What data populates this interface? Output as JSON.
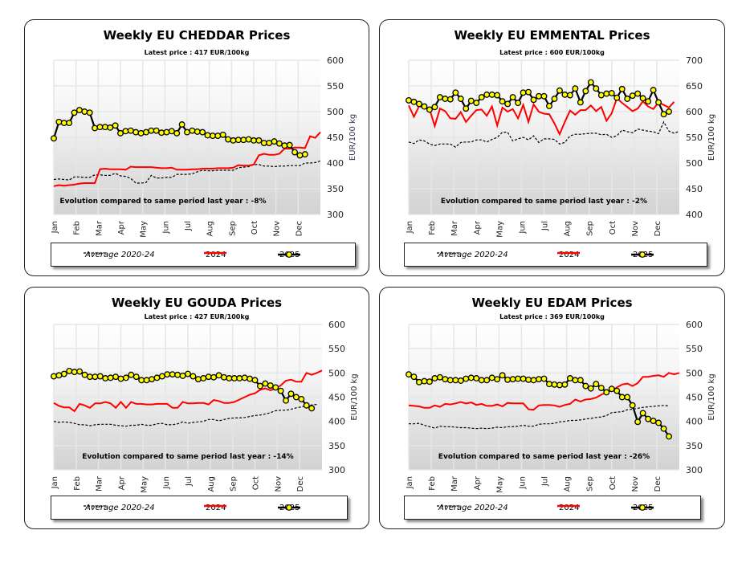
{
  "legend_labels": {
    "avg": "Average 2020-24",
    "y2024": "2024",
    "y2025": "2025"
  },
  "colors": {
    "avg": "#000000",
    "y2024": "#ff0000",
    "y2025": "#000000",
    "marker": "#ffff00"
  },
  "chart_data": [
    {
      "type": "line",
      "title": "Weekly EU CHEDDAR Prices",
      "subtitle": "Latest price : 417 EUR/100kg",
      "ylabel": "EUR/100 kg",
      "note": "Evolution compared to same period last year : -8%",
      "ylim": [
        300,
        600
      ],
      "y_ticks": [
        300,
        350,
        400,
        450,
        500,
        550,
        600
      ],
      "x_unit": "week",
      "months": [
        "Jan",
        "Feb",
        "Mar",
        "Apr",
        "May",
        "Jun",
        "Jul",
        "Aug",
        "Sep",
        "Oct",
        "Nov",
        "Dec"
      ],
      "grid": true,
      "legend": "bottom",
      "series": [
        {
          "name": "Average 2020-24",
          "style": "dashed",
          "values": [
            368,
            369,
            368,
            367,
            373,
            373,
            372,
            372,
            377,
            377,
            376,
            376,
            380,
            375,
            374,
            370,
            361,
            361,
            362,
            376,
            371,
            371,
            372,
            372,
            378,
            378,
            378,
            379,
            383,
            386,
            385,
            385,
            386,
            386,
            386,
            386,
            391,
            392,
            393,
            397,
            397,
            394,
            394,
            393,
            394,
            394,
            395,
            395,
            395,
            400,
            400,
            401,
            404
          ]
        },
        {
          "name": "2024",
          "style": "solid",
          "values": [
            355,
            357,
            356,
            357,
            358,
            360,
            361,
            361,
            361,
            388,
            389,
            388,
            388,
            388,
            387,
            393,
            392,
            392,
            392,
            392,
            391,
            390,
            390,
            391,
            387,
            387,
            387,
            388,
            388,
            389,
            389,
            389,
            390,
            390,
            390,
            391,
            396,
            395,
            395,
            397,
            415,
            418,
            416,
            416,
            418,
            428,
            428,
            430,
            430,
            429,
            452,
            449,
            460
          ]
        },
        {
          "name": "2025",
          "style": "markers",
          "values": [
            448,
            480,
            478,
            478,
            498,
            503,
            500,
            498,
            468,
            470,
            470,
            469,
            473,
            458,
            462,
            463,
            460,
            458,
            460,
            463,
            463,
            459,
            460,
            462,
            458,
            475,
            460,
            463,
            461,
            460,
            454,
            453,
            453,
            455,
            446,
            444,
            445,
            445,
            446,
            444,
            444,
            439,
            439,
            442,
            438,
            434,
            435,
            421,
            415,
            417
          ]
        }
      ]
    },
    {
      "type": "line",
      "title": "Weekly EU EMMENTAL Prices",
      "subtitle": "Latest price : 600 EUR/100kg",
      "ylabel": "EUR/100 kg",
      "note": "Evolution compared to same period last year : -2%",
      "ylim": [
        400,
        700
      ],
      "y_ticks": [
        400,
        450,
        500,
        550,
        600,
        650,
        700
      ],
      "x_unit": "week",
      "months": [
        "Jan",
        "Feb",
        "Mar",
        "Apr",
        "May",
        "Jun",
        "Jul",
        "Aug",
        "Sep",
        "Oct",
        "Nov",
        "Dec"
      ],
      "grid": true,
      "legend": "bottom",
      "series": [
        {
          "name": "Average 2020-24",
          "style": "dashed",
          "values": [
            541,
            538,
            545,
            543,
            537,
            534,
            537,
            537,
            537,
            531,
            540,
            541,
            541,
            545,
            545,
            541,
            546,
            550,
            560,
            560,
            543,
            547,
            550,
            545,
            553,
            540,
            547,
            547,
            546,
            537,
            540,
            553,
            556,
            556,
            557,
            558,
            558,
            555,
            556,
            550,
            553,
            564,
            561,
            559,
            566,
            564,
            562,
            561,
            557,
            580,
            562,
            558,
            562
          ]
        },
        {
          "name": "2024",
          "style": "solid",
          "values": [
            612,
            590,
            611,
            607,
            605,
            572,
            606,
            601,
            587,
            586,
            599,
            580,
            592,
            603,
            604,
            592,
            610,
            573,
            608,
            600,
            605,
            587,
            613,
            580,
            614,
            600,
            596,
            595,
            577,
            556,
            580,
            602,
            594,
            603,
            603,
            612,
            601,
            609,
            582,
            597,
            626,
            617,
            609,
            601,
            606,
            620,
            610,
            605,
            618,
            613,
            608,
            619
          ]
        },
        {
          "name": "2025",
          "style": "markers",
          "values": [
            622,
            619,
            615,
            610,
            604,
            609,
            628,
            625,
            624,
            637,
            625,
            606,
            621,
            617,
            628,
            633,
            633,
            632,
            620,
            615,
            628,
            617,
            637,
            638,
            623,
            630,
            630,
            611,
            625,
            641,
            633,
            632,
            645,
            618,
            640,
            657,
            645,
            632,
            635,
            636,
            627,
            644,
            625,
            631,
            635,
            626,
            620,
            642,
            618,
            595,
            600
          ]
        }
      ]
    },
    {
      "type": "line",
      "title": "Weekly EU GOUDA Prices",
      "subtitle": "Latest price : 427 EUR/100kg",
      "ylabel": "EUR/100 kg",
      "note": "Evolution compared to same period last year : -14%",
      "ylim": [
        300,
        600
      ],
      "y_ticks": [
        300,
        350,
        400,
        450,
        500,
        550,
        600
      ],
      "x_unit": "week",
      "months": [
        "Jan",
        "Feb",
        "Mar",
        "Apr",
        "May",
        "Jun",
        "Jul",
        "Aug",
        "Sep",
        "Oct",
        "Nov",
        "Dec"
      ],
      "grid": true,
      "legend": "bottom",
      "series": [
        {
          "name": "Average 2020-24",
          "style": "dashed",
          "values": [
            400,
            398,
            399,
            398,
            396,
            393,
            393,
            391,
            393,
            394,
            394,
            394,
            392,
            391,
            390,
            392,
            392,
            394,
            392,
            392,
            395,
            396,
            393,
            393,
            395,
            399,
            396,
            398,
            399,
            400,
            404,
            404,
            401,
            404,
            406,
            407,
            407,
            408,
            410,
            412,
            413,
            415,
            418,
            422,
            423,
            423,
            425,
            428,
            430,
            432,
            434,
            435
          ]
        },
        {
          "name": "2024",
          "style": "solid",
          "values": [
            438,
            432,
            429,
            429,
            421,
            436,
            433,
            428,
            437,
            437,
            440,
            437,
            428,
            440,
            428,
            440,
            436,
            436,
            435,
            435,
            436,
            436,
            436,
            428,
            428,
            440,
            437,
            437,
            438,
            438,
            435,
            444,
            442,
            438,
            438,
            440,
            445,
            450,
            455,
            458,
            465,
            468,
            464,
            468,
            474,
            484,
            486,
            482,
            482,
            500,
            496,
            500,
            505
          ]
        },
        {
          "name": "2025",
          "style": "markers",
          "values": [
            493,
            495,
            498,
            504,
            502,
            503,
            496,
            492,
            492,
            493,
            489,
            490,
            492,
            488,
            490,
            496,
            492,
            485,
            485,
            487,
            490,
            493,
            497,
            497,
            496,
            494,
            498,
            493,
            487,
            489,
            492,
            491,
            495,
            491,
            489,
            489,
            489,
            490,
            488,
            485,
            473,
            478,
            474,
            470,
            463,
            443,
            457,
            450,
            446,
            433,
            427
          ]
        }
      ]
    },
    {
      "type": "line",
      "title": "Weekly EU EDAM Prices",
      "subtitle": "Latest price : 369 EUR/100kg",
      "ylabel": "EUR/100 kg",
      "note": "Evolution compared to same period last year : -26%",
      "ylim": [
        300,
        600
      ],
      "y_ticks": [
        300,
        350,
        400,
        450,
        500,
        550,
        600
      ],
      "x_unit": "week",
      "months": [
        "Jan",
        "Feb",
        "Mar",
        "Apr",
        "May",
        "Jun",
        "Jul",
        "Aug",
        "Sep",
        "Oct",
        "Nov",
        "Dec"
      ],
      "grid": true,
      "legend": "bottom",
      "series": [
        {
          "name": "Average 2020-24",
          "style": "dashed",
          "values": [
            395,
            395,
            396,
            392,
            389,
            386,
            390,
            389,
            389,
            388,
            387,
            387,
            386,
            385,
            386,
            385,
            386,
            388,
            387,
            389,
            389,
            390,
            392,
            390,
            390,
            394,
            395,
            395,
            396,
            399,
            400,
            402,
            402,
            403,
            405,
            406,
            408,
            409,
            412,
            418,
            419,
            420,
            424,
            425,
            427,
            429,
            430,
            431,
            432,
            433,
            432
          ]
        },
        {
          "name": "2024",
          "style": "solid",
          "values": [
            433,
            432,
            431,
            428,
            428,
            433,
            430,
            436,
            435,
            437,
            440,
            437,
            439,
            434,
            436,
            432,
            432,
            435,
            431,
            438,
            437,
            437,
            437,
            425,
            424,
            433,
            434,
            434,
            433,
            430,
            434,
            436,
            445,
            441,
            445,
            446,
            449,
            455,
            460,
            464,
            470,
            476,
            478,
            473,
            479,
            492,
            492,
            494,
            495,
            492,
            500,
            497,
            500
          ]
        },
        {
          "name": "2025",
          "style": "markers",
          "values": [
            497,
            492,
            481,
            483,
            482,
            489,
            491,
            487,
            485,
            485,
            484,
            488,
            490,
            489,
            485,
            485,
            490,
            487,
            495,
            486,
            487,
            488,
            488,
            486,
            485,
            487,
            488,
            477,
            476,
            475,
            476,
            489,
            485,
            485,
            473,
            468,
            477,
            469,
            460,
            467,
            463,
            450,
            450,
            433,
            399,
            417,
            405,
            401,
            397,
            385,
            369
          ]
        }
      ]
    }
  ]
}
